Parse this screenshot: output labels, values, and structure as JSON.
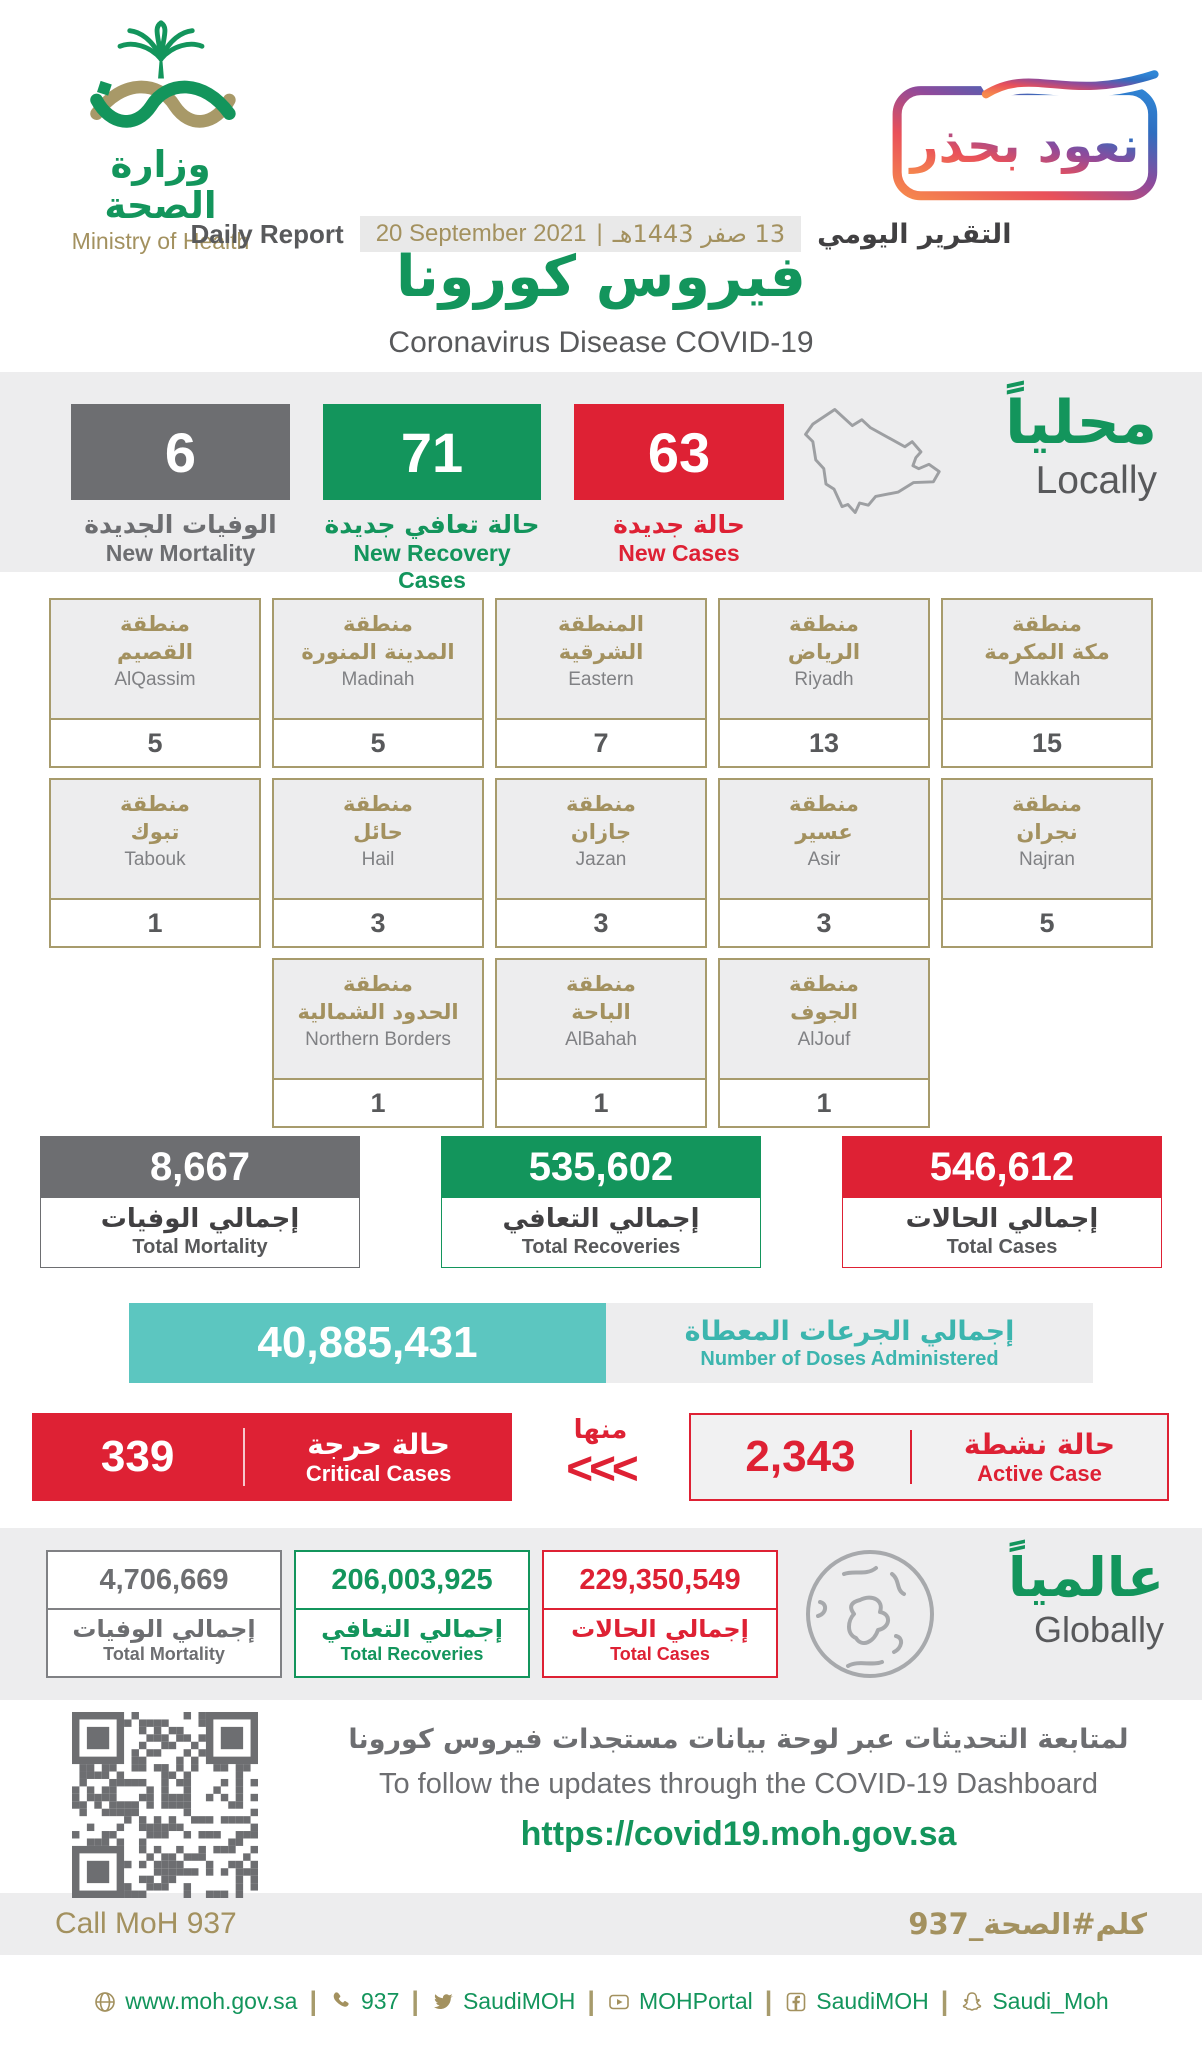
{
  "header": {
    "logo_ar": "وزارة الصحة",
    "logo_en": "Ministry of Health",
    "badge": "نعود بحذر",
    "daily_en": "Daily Report",
    "date_en": "20 September 2021",
    "date_sep": "|",
    "date_hijri": "13 صفر 1443هـ",
    "daily_ar": "التقرير اليومي",
    "title_ar": "فيروس كورونا",
    "title_en": "Coronavirus Disease COVID-19"
  },
  "local": {
    "heading_ar": "محلياً",
    "heading_en": "Locally",
    "stats": [
      {
        "value": "6",
        "label_ar": "الوفيات الجديدة",
        "label_en": "New Mortality",
        "color": "#6d6e71"
      },
      {
        "value": "71",
        "label_ar": "حالة تعافي جديدة",
        "label_en": "New Recovery Cases",
        "color": "#13955c"
      },
      {
        "value": "63",
        "label_ar": "حالة جديدة",
        "label_en": "New Cases",
        "color": "#de2134"
      }
    ]
  },
  "regions": [
    {
      "ar": "منطقة\nالقصيم",
      "en": "AlQassim",
      "value": "5"
    },
    {
      "ar": "منطقة\nالمدينة المنورة",
      "en": "Madinah",
      "value": "5"
    },
    {
      "ar": "المنطقة\nالشرقية",
      "en": "Eastern",
      "value": "7"
    },
    {
      "ar": "منطقة\nالرياض",
      "en": "Riyadh",
      "value": "13"
    },
    {
      "ar": "منطقة\nمكة المكرمة",
      "en": "Makkah",
      "value": "15"
    },
    {
      "ar": "منطقة\nتبوك",
      "en": "Tabouk",
      "value": "1"
    },
    {
      "ar": "منطقة\nحائل",
      "en": "Hail",
      "value": "3"
    },
    {
      "ar": "منطقة\nجازان",
      "en": "Jazan",
      "value": "3"
    },
    {
      "ar": "منطقة\nعسير",
      "en": "Asir",
      "value": "3"
    },
    {
      "ar": "منطقة\nنجران",
      "en": "Najran",
      "value": "5"
    },
    {
      "ar": "منطقة\nالحدود الشمالية",
      "en": "Northern Borders",
      "value": "1"
    },
    {
      "ar": "منطقة\nالباحة",
      "en": "AlBahah",
      "value": "1"
    },
    {
      "ar": "منطقة\nالجوف",
      "en": "AlJouf",
      "value": "1"
    }
  ],
  "totals": [
    {
      "value": "8,667",
      "label_ar": "إجمالي الوفيات",
      "label_en": "Total Mortality"
    },
    {
      "value": "535,602",
      "label_ar": "إجمالي التعافي",
      "label_en": "Total Recoveries"
    },
    {
      "value": "546,612",
      "label_ar": "إجمالي الحالات",
      "label_en": "Total Cases"
    }
  ],
  "doses": {
    "value": "40,885,431",
    "label_ar": "إجمالي الجرعات المعطاة",
    "label_en": "Number of Doses Administered"
  },
  "critical": {
    "value": "339",
    "label_ar": "حالة حرجة",
    "label_en": "Critical Cases"
  },
  "of_which": {
    "label_ar": "منها",
    "chevrons": "<<<"
  },
  "active": {
    "value": "2,343",
    "label_ar": "حالة نشطة",
    "label_en": "Active Case"
  },
  "global": {
    "heading_ar": "عالمياً",
    "heading_en": "Globally",
    "stats": [
      {
        "value": "4,706,669",
        "label_ar": "إجمالي الوفيات",
        "label_en": "Total Mortality"
      },
      {
        "value": "206,003,925",
        "label_ar": "إجمالي التعافي",
        "label_en": "Total Recoveries"
      },
      {
        "value": "229,350,549",
        "label_ar": "إجمالي الحالات",
        "label_en": "Total Cases"
      }
    ]
  },
  "dashboard": {
    "line_ar": "لمتابعة التحديثات عبر لوحة بيانات مستجدات فيروس كورونا",
    "line_en": "To follow the updates through the COVID-19 Dashboard",
    "url": "https://covid19.moh.gov.sa"
  },
  "footer": {
    "call_en": "Call MoH 937",
    "call_ar": "كلم#الصحة_937"
  },
  "links": [
    {
      "icon": "globe-icon",
      "label": "www.moh.gov.sa"
    },
    {
      "icon": "phone-icon",
      "label": "937"
    },
    {
      "icon": "twitter-icon",
      "label": "SaudiMOH"
    },
    {
      "icon": "youtube-icon",
      "label": "MOHPortal"
    },
    {
      "icon": "facebook-icon",
      "label": "SaudiMOH"
    },
    {
      "icon": "snapchat-icon",
      "label": "Saudi_Moh"
    }
  ],
  "colors": {
    "green": "#13955c",
    "red": "#de2134",
    "gray": "#6d6e71",
    "teal": "#5cc6c0",
    "gold": "#a3915f",
    "band_bg": "#ededee"
  }
}
